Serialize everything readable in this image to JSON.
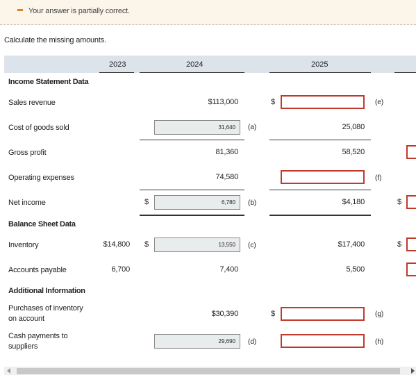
{
  "banner": {
    "text": "Your answer is partially correct.",
    "icon": "partial-correct-icon"
  },
  "prompt": "Calculate the missing amounts.",
  "years": [
    "2023",
    "2024",
    "2025"
  ],
  "sections": {
    "income": "Income Statement Data",
    "balance": "Balance Sheet Data",
    "additional": "Additional Information"
  },
  "rows": {
    "sales_revenue": {
      "label": "Sales revenue",
      "y2024": "$113,000",
      "y2025_currency": "$",
      "y2025_mark": "(e)"
    },
    "cogs": {
      "label": "Cost of goods sold",
      "y2024_input": "31,640",
      "y2024_mark": "(a)",
      "y2025": "25,080"
    },
    "gross_profit": {
      "label": "Gross profit",
      "y2024": "81,360",
      "y2025": "58,520"
    },
    "operating_expenses": {
      "label": "Operating expenses",
      "y2024": "74,580",
      "y2025_mark": "(f)"
    },
    "net_income": {
      "label": "Net income",
      "y2024_currency": "$",
      "y2024_input": "6,780",
      "y2024_mark": "(b)",
      "y2025": "$4,180",
      "extra_currency": "$"
    },
    "inventory": {
      "label": "Inventory",
      "y2023": "$14,800",
      "y2024_currency": "$",
      "y2024_input": "13,550",
      "y2024_mark": "(c)",
      "y2025": "$17,400",
      "extra_currency": "$"
    },
    "accounts_payable": {
      "label": "Accounts payable",
      "y2023": "6,700",
      "y2024": "7,400",
      "y2025": "5,500"
    },
    "purchases": {
      "label_line1": "Purchases of inventory",
      "label_line2": "on account",
      "y2024": "$30,390",
      "y2025_currency": "$",
      "y2025_mark": "(g)"
    },
    "cash_payments": {
      "label_line1": "Cash payments to",
      "label_line2": "suppliers",
      "y2024_input": "29,690",
      "y2024_mark": "(d)",
      "y2025_mark": "(h)"
    }
  },
  "colors": {
    "header_band": "#dde3ea",
    "error_border": "#c0392b",
    "banner_bg": "#fbf5ea",
    "banner_icon": "#d9822b",
    "prefilled_bg": "#e9ecec"
  }
}
